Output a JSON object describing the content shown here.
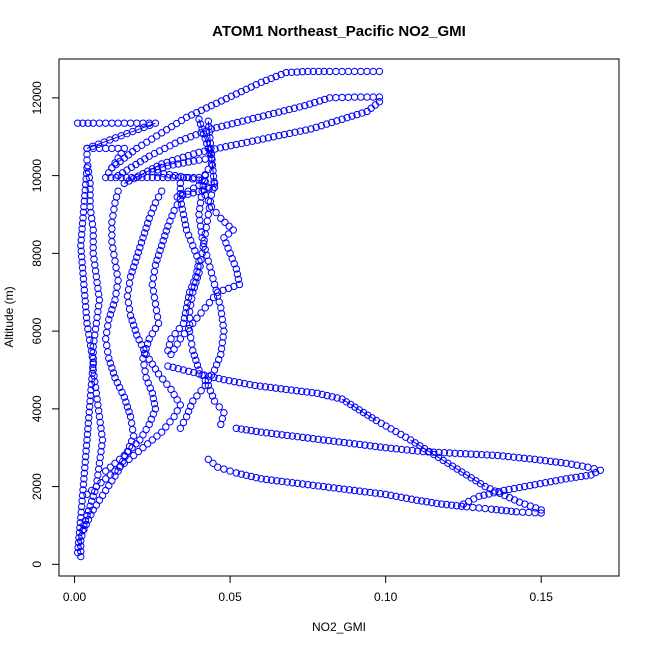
{
  "chart_data": {
    "type": "scatter",
    "title": "ATOM1 Northeast_Pacific NO2_GMI",
    "xlabel": "NO2_GMI",
    "ylabel": "Altitude (m)",
    "xlim": [
      -0.005,
      0.175
    ],
    "ylim": [
      -300,
      13000
    ],
    "xticks": [
      0.0,
      0.05,
      0.1,
      0.15
    ],
    "xtick_labels": [
      "0.00",
      "0.05",
      "0.10",
      "0.15"
    ],
    "yticks": [
      0,
      2000,
      4000,
      6000,
      8000,
      10000,
      12000
    ],
    "ytick_labels": [
      "0",
      "2000",
      "4000",
      "6000",
      "8000",
      "10000",
      "12000"
    ],
    "grid": false,
    "legend": "none",
    "marker": "open-circle",
    "color": "#0000ff",
    "series": [
      {
        "points": [
          [
            0.002,
            200
          ],
          [
            0.002,
            600
          ],
          [
            0.003,
            1000
          ],
          [
            0.005,
            1500
          ],
          [
            0.007,
            2000
          ],
          [
            0.008,
            2600
          ],
          [
            0.009,
            3200
          ],
          [
            0.008,
            3800
          ],
          [
            0.007,
            4400
          ],
          [
            0.006,
            5000
          ],
          [
            0.006,
            5600
          ],
          [
            0.007,
            6200
          ],
          [
            0.008,
            6800
          ],
          [
            0.007,
            7400
          ],
          [
            0.006,
            8000
          ],
          [
            0.006,
            8600
          ],
          [
            0.005,
            9200
          ],
          [
            0.005,
            9800
          ],
          [
            0.004,
            10400
          ],
          [
            0.004,
            10700
          ]
        ]
      },
      {
        "points": [
          [
            0.003,
            900
          ],
          [
            0.006,
            1400
          ],
          [
            0.01,
            1900
          ],
          [
            0.014,
            2400
          ],
          [
            0.017,
            2900
          ],
          [
            0.019,
            3300
          ],
          [
            0.018,
            3800
          ],
          [
            0.016,
            4300
          ],
          [
            0.013,
            4800
          ],
          [
            0.011,
            5300
          ],
          [
            0.01,
            5800
          ],
          [
            0.011,
            6300
          ],
          [
            0.013,
            6800
          ],
          [
            0.014,
            7300
          ],
          [
            0.013,
            7800
          ],
          [
            0.012,
            8300
          ],
          [
            0.012,
            8800
          ],
          [
            0.013,
            9300
          ],
          [
            0.014,
            9600
          ]
        ]
      },
      {
        "points": [
          [
            0.004,
            1800
          ],
          [
            0.01,
            2200
          ],
          [
            0.016,
            2600
          ],
          [
            0.022,
            3000
          ],
          [
            0.028,
            3400
          ],
          [
            0.032,
            3800
          ],
          [
            0.034,
            4100
          ],
          [
            0.031,
            4500
          ],
          [
            0.027,
            4900
          ],
          [
            0.023,
            5400
          ],
          [
            0.02,
            5900
          ],
          [
            0.018,
            6400
          ],
          [
            0.017,
            6900
          ],
          [
            0.018,
            7400
          ],
          [
            0.02,
            7900
          ],
          [
            0.022,
            8400
          ],
          [
            0.024,
            8900
          ],
          [
            0.026,
            9300
          ],
          [
            0.028,
            9600
          ]
        ]
      },
      {
        "points": [
          [
            0.01,
            2400
          ],
          [
            0.016,
            2800
          ],
          [
            0.021,
            3200
          ],
          [
            0.024,
            3600
          ],
          [
            0.026,
            4000
          ],
          [
            0.025,
            4400
          ],
          [
            0.023,
            4800
          ],
          [
            0.022,
            5300
          ],
          [
            0.024,
            5800
          ],
          [
            0.027,
            6200
          ],
          [
            0.026,
            6700
          ],
          [
            0.025,
            7200
          ],
          [
            0.026,
            7700
          ],
          [
            0.028,
            8200
          ],
          [
            0.03,
            8700
          ],
          [
            0.032,
            9100
          ],
          [
            0.034,
            9400
          ]
        ]
      },
      {
        "points": [
          [
            0.031,
            5400
          ],
          [
            0.034,
            5800
          ],
          [
            0.038,
            6200
          ],
          [
            0.042,
            6600
          ],
          [
            0.046,
            7000
          ],
          [
            0.053,
            7200
          ],
          [
            0.052,
            7600
          ],
          [
            0.05,
            8000
          ],
          [
            0.048,
            8400
          ],
          [
            0.051,
            8600
          ],
          [
            0.047,
            8900
          ],
          [
            0.044,
            9200
          ],
          [
            0.042,
            9500
          ],
          [
            0.043,
            9700
          ]
        ]
      },
      {
        "points": [
          [
            0.03,
            5500
          ],
          [
            0.031,
            5800
          ],
          [
            0.035,
            6200
          ],
          [
            0.036,
            6600
          ],
          [
            0.037,
            7000
          ],
          [
            0.039,
            7400
          ],
          [
            0.04,
            7800
          ],
          [
            0.038,
            8200
          ],
          [
            0.036,
            8600
          ],
          [
            0.035,
            9000
          ],
          [
            0.034,
            9400
          ],
          [
            0.034,
            9800
          ]
        ]
      },
      {
        "points": [
          [
            0.034,
            3500
          ],
          [
            0.036,
            3800
          ],
          [
            0.038,
            4200
          ],
          [
            0.042,
            4600
          ],
          [
            0.045,
            5000
          ],
          [
            0.047,
            5400
          ],
          [
            0.048,
            6000
          ],
          [
            0.047,
            6600
          ],
          [
            0.045,
            7200
          ],
          [
            0.043,
            7800
          ],
          [
            0.041,
            8400
          ],
          [
            0.04,
            9000
          ],
          [
            0.041,
            9600
          ],
          [
            0.042,
            10000
          ]
        ]
      },
      {
        "points": [
          [
            0.047,
            3600
          ],
          [
            0.048,
            3900
          ],
          [
            0.045,
            4200
          ],
          [
            0.043,
            4600
          ],
          [
            0.04,
            5000
          ],
          [
            0.038,
            5500
          ],
          [
            0.037,
            6000
          ],
          [
            0.037,
            6500
          ],
          [
            0.038,
            7000
          ],
          [
            0.04,
            7500
          ],
          [
            0.041,
            8000
          ],
          [
            0.042,
            8500
          ],
          [
            0.043,
            9000
          ],
          [
            0.044,
            9500
          ],
          [
            0.045,
            9800
          ]
        ]
      },
      {
        "points": [
          [
            0.03,
            5100
          ],
          [
            0.04,
            4900
          ],
          [
            0.048,
            4750
          ],
          [
            0.058,
            4600
          ],
          [
            0.068,
            4500
          ],
          [
            0.078,
            4400
          ],
          [
            0.086,
            4250
          ],
          [
            0.097,
            3700
          ],
          [
            0.108,
            3200
          ],
          [
            0.12,
            2600
          ],
          [
            0.132,
            2000
          ],
          [
            0.143,
            1600
          ],
          [
            0.15,
            1400
          ]
        ]
      },
      {
        "points": [
          [
            0.052,
            3500
          ],
          [
            0.06,
            3400
          ],
          [
            0.07,
            3300
          ],
          [
            0.08,
            3200
          ],
          [
            0.09,
            3100
          ],
          [
            0.1,
            3000
          ],
          [
            0.112,
            2900
          ],
          [
            0.124,
            2850
          ],
          [
            0.136,
            2800
          ],
          [
            0.148,
            2700
          ],
          [
            0.158,
            2600
          ],
          [
            0.165,
            2500
          ],
          [
            0.169,
            2420
          ],
          [
            0.166,
            2300
          ],
          [
            0.158,
            2200
          ],
          [
            0.148,
            2050
          ],
          [
            0.138,
            1900
          ],
          [
            0.13,
            1750
          ],
          [
            0.125,
            1550
          ]
        ]
      },
      {
        "points": [
          [
            0.043,
            2700
          ],
          [
            0.046,
            2500
          ],
          [
            0.052,
            2350
          ],
          [
            0.06,
            2200
          ],
          [
            0.07,
            2100
          ],
          [
            0.08,
            2000
          ],
          [
            0.09,
            1900
          ],
          [
            0.1,
            1800
          ],
          [
            0.11,
            1650
          ],
          [
            0.118,
            1550
          ],
          [
            0.126,
            1480
          ],
          [
            0.134,
            1420
          ],
          [
            0.142,
            1350
          ],
          [
            0.15,
            1320
          ]
        ]
      },
      {
        "points": [
          [
            0.012,
            10200
          ],
          [
            0.02,
            10700
          ],
          [
            0.028,
            11100
          ],
          [
            0.036,
            11500
          ],
          [
            0.044,
            11800
          ],
          [
            0.052,
            12100
          ],
          [
            0.06,
            12400
          ],
          [
            0.068,
            12650
          ],
          [
            0.075,
            12680
          ],
          [
            0.082,
            12680
          ],
          [
            0.09,
            12680
          ],
          [
            0.098,
            12680
          ]
        ]
      },
      {
        "points": [
          [
            0.014,
            10000
          ],
          [
            0.024,
            10500
          ],
          [
            0.034,
            10900
          ],
          [
            0.044,
            11200
          ],
          [
            0.054,
            11400
          ],
          [
            0.064,
            11600
          ],
          [
            0.074,
            11800
          ],
          [
            0.082,
            12000
          ],
          [
            0.09,
            12020
          ],
          [
            0.098,
            12020
          ]
        ]
      },
      {
        "points": [
          [
            0.016,
            9800
          ],
          [
            0.028,
            10300
          ],
          [
            0.04,
            10600
          ],
          [
            0.052,
            10800
          ],
          [
            0.064,
            11000
          ],
          [
            0.076,
            11200
          ],
          [
            0.086,
            11450
          ],
          [
            0.094,
            11650
          ],
          [
            0.098,
            11900
          ]
        ]
      },
      {
        "points": [
          [
            0.001,
            11350
          ],
          [
            0.006,
            11350
          ],
          [
            0.012,
            11350
          ],
          [
            0.018,
            11350
          ],
          [
            0.026,
            11350
          ],
          [
            0.004,
            10700
          ],
          [
            0.01,
            10700
          ],
          [
            0.016,
            10700
          ],
          [
            0.01,
            9950
          ],
          [
            0.02,
            9950
          ],
          [
            0.03,
            9950
          ],
          [
            0.04,
            9950
          ],
          [
            0.042,
            9850
          ],
          [
            0.036,
            9950
          ],
          [
            0.025,
            10100
          ],
          [
            0.03,
            10250
          ],
          [
            0.04,
            10400
          ],
          [
            0.044,
            10450
          ],
          [
            0.04,
            11450
          ],
          [
            0.043,
            11400
          ],
          [
            0.045,
            9700
          ],
          [
            0.033,
            9450
          ],
          [
            0.04,
            9750
          ],
          [
            0.044,
            10300
          ]
        ]
      },
      {
        "points": [
          [
            0.001,
            300
          ],
          [
            0.002,
            1200
          ],
          [
            0.003,
            2200
          ],
          [
            0.004,
            3200
          ],
          [
            0.005,
            4200
          ],
          [
            0.006,
            5200
          ],
          [
            0.004,
            6200
          ],
          [
            0.003,
            7200
          ],
          [
            0.002,
            8200
          ],
          [
            0.003,
            9200
          ],
          [
            0.004,
            10200
          ]
        ]
      }
    ]
  }
}
